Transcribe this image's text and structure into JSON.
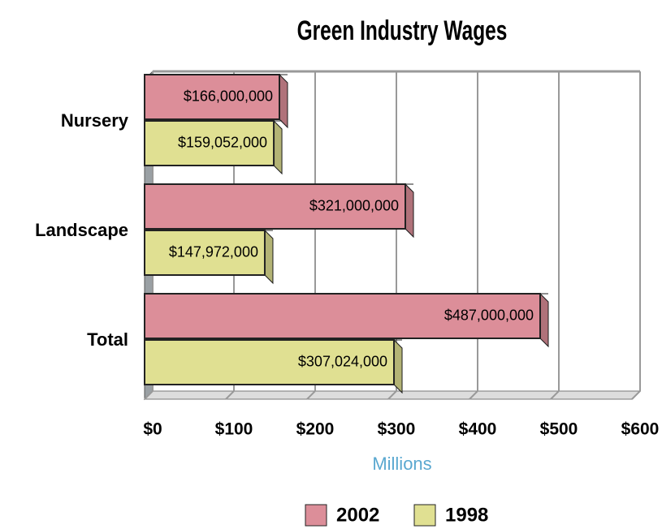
{
  "chart_data": {
    "type": "bar",
    "orientation": "horizontal",
    "title": "Green Industry Wages",
    "x_axis_label": "Millions",
    "categories": [
      "Nursery",
      "Landscape",
      "Total"
    ],
    "series": [
      {
        "name": "2002",
        "color": "#dc8e99",
        "values": [
          166,
          321,
          487
        ],
        "value_labels": [
          "$166,000,000",
          "$321,000,000",
          "$487,000,000"
        ]
      },
      {
        "name": "1998",
        "color": "#e0e092",
        "values": [
          159.052,
          147.972,
          307.024
        ],
        "value_labels": [
          "$159,052,000",
          "$147,972,000",
          "$307,024,000"
        ]
      }
    ],
    "xlim": [
      0,
      600
    ],
    "xticks": [
      {
        "value": 0,
        "label": "$0"
      },
      {
        "value": 100,
        "label": "$100"
      },
      {
        "value": 200,
        "label": "$200"
      },
      {
        "value": 300,
        "label": "$300"
      },
      {
        "value": 400,
        "label": "$400"
      },
      {
        "value": 500,
        "label": "$500"
      },
      {
        "value": 600,
        "label": "$600"
      }
    ],
    "grid": true,
    "legend": "bottom"
  }
}
